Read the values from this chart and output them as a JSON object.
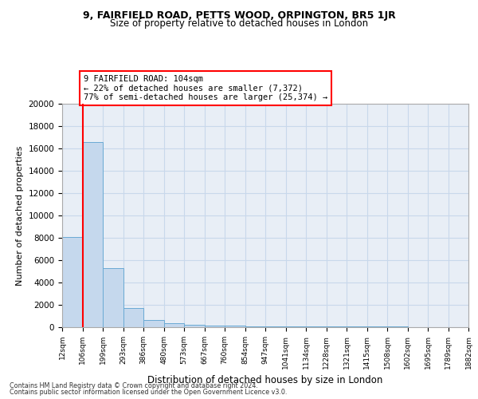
{
  "title1": "9, FAIRFIELD ROAD, PETTS WOOD, ORPINGTON, BR5 1JR",
  "title2": "Size of property relative to detached houses in London",
  "xlabel": "Distribution of detached houses by size in London",
  "ylabel": "Number of detached properties",
  "annotation_line1": "9 FAIRFIELD ROAD: 104sqm",
  "annotation_line2": "← 22% of detached houses are smaller (7,372)",
  "annotation_line3": "77% of semi-detached houses are larger (25,374) →",
  "footer1": "Contains HM Land Registry data © Crown copyright and database right 2024.",
  "footer2": "Contains public sector information licensed under the Open Government Licence v3.0.",
  "bar_edges": [
    12,
    106,
    199,
    293,
    386,
    480,
    573,
    667,
    760,
    854,
    947,
    1041,
    1134,
    1228,
    1321,
    1415,
    1508,
    1602,
    1695,
    1789,
    1882
  ],
  "bar_heights": [
    8100,
    16600,
    5300,
    1750,
    650,
    360,
    210,
    140,
    110,
    85,
    75,
    65,
    55,
    50,
    45,
    40,
    38,
    35,
    32,
    28
  ],
  "bar_color": "#c5d8ed",
  "bar_edgecolor": "#6aaad4",
  "red_line_x": 106,
  "ylim": [
    0,
    20000
  ],
  "xlim": [
    12,
    1882
  ],
  "tick_labels": [
    "12sqm",
    "106sqm",
    "199sqm",
    "293sqm",
    "386sqm",
    "480sqm",
    "573sqm",
    "667sqm",
    "760sqm",
    "854sqm",
    "947sqm",
    "1041sqm",
    "1134sqm",
    "1228sqm",
    "1321sqm",
    "1415sqm",
    "1508sqm",
    "1602sqm",
    "1695sqm",
    "1789sqm",
    "1882sqm"
  ],
  "grid_color": "#c8d8eb",
  "background_color": "#e8eef6"
}
